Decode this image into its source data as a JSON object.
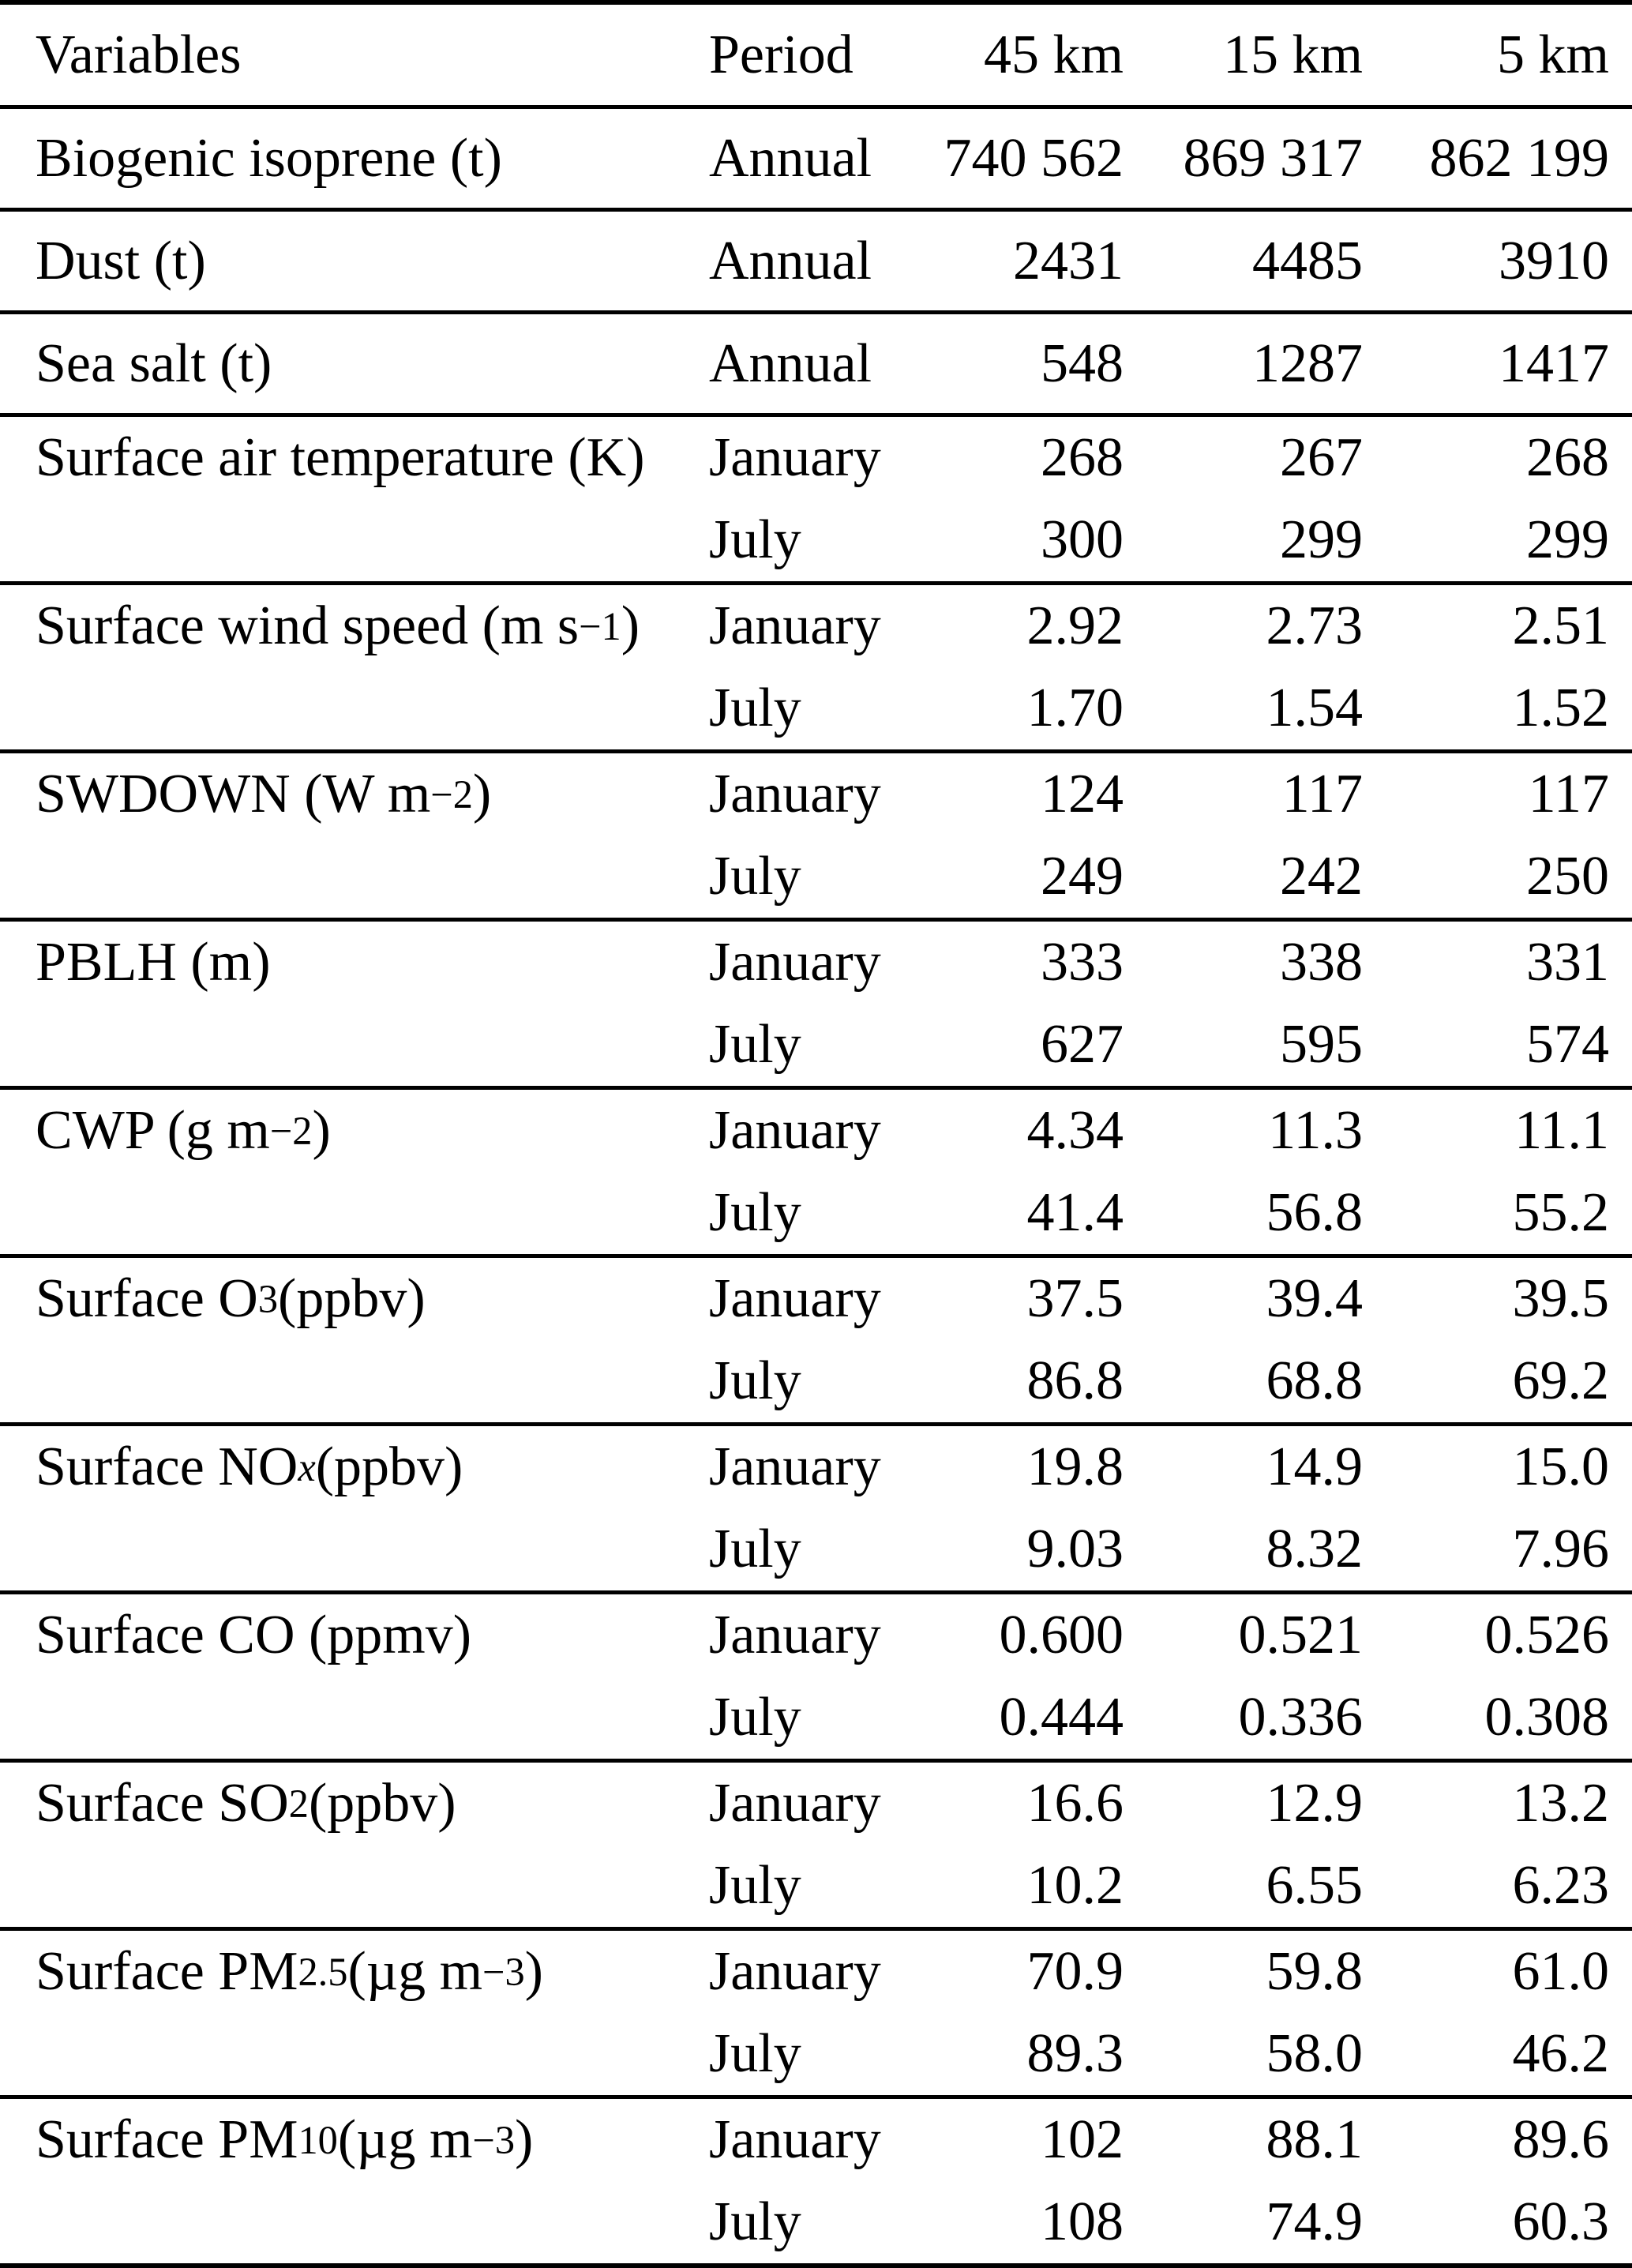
{
  "table": {
    "columns": [
      "Variables",
      "Period",
      "45 km",
      "15 km",
      "5 km"
    ],
    "rows": [
      {
        "variable": [
          {
            "t": "Biogenic isoprene (t)"
          }
        ],
        "entries": [
          {
            "period": "Annual",
            "values": [
              "740 562",
              "869 317",
              "862 199"
            ]
          }
        ]
      },
      {
        "variable": [
          {
            "t": "Dust (t)"
          }
        ],
        "entries": [
          {
            "period": "Annual",
            "values": [
              "2431",
              "4485",
              "3910"
            ]
          }
        ]
      },
      {
        "variable": [
          {
            "t": "Sea salt (t)"
          }
        ],
        "entries": [
          {
            "period": "Annual",
            "values": [
              "548",
              "1287",
              "1417"
            ]
          }
        ]
      },
      {
        "variable": [
          {
            "t": "Surface air temperature (K)"
          }
        ],
        "entries": [
          {
            "period": "January",
            "values": [
              "268",
              "267",
              "268"
            ]
          },
          {
            "period": "July",
            "values": [
              "300",
              "299",
              "299"
            ]
          }
        ]
      },
      {
        "variable": [
          {
            "t": "Surface wind speed (m s"
          },
          {
            "t": "−1",
            "sup": true
          },
          {
            "t": ")"
          }
        ],
        "entries": [
          {
            "period": "January",
            "values": [
              "2.92",
              "2.73",
              "2.51"
            ]
          },
          {
            "period": "July",
            "values": [
              "1.70",
              "1.54",
              "1.52"
            ]
          }
        ]
      },
      {
        "variable": [
          {
            "t": "SWDOWN (W m"
          },
          {
            "t": "−2",
            "sup": true
          },
          {
            "t": ")"
          }
        ],
        "entries": [
          {
            "period": "January",
            "values": [
              "124",
              "117",
              "117"
            ]
          },
          {
            "period": "July",
            "values": [
              "249",
              "242",
              "250"
            ]
          }
        ]
      },
      {
        "variable": [
          {
            "t": "PBLH (m)"
          }
        ],
        "entries": [
          {
            "period": "January",
            "values": [
              "333",
              "338",
              "331"
            ]
          },
          {
            "period": "July",
            "values": [
              "627",
              "595",
              "574"
            ]
          }
        ]
      },
      {
        "variable": [
          {
            "t": "CWP (g m"
          },
          {
            "t": "−2",
            "sup": true
          },
          {
            "t": ")"
          }
        ],
        "entries": [
          {
            "period": "January",
            "values": [
              "4.34",
              "11.3",
              "11.1"
            ]
          },
          {
            "period": "July",
            "values": [
              "41.4",
              "56.8",
              "55.2"
            ]
          }
        ]
      },
      {
        "variable": [
          {
            "t": "Surface O"
          },
          {
            "t": "3",
            "sub": true
          },
          {
            "t": " (ppbv)"
          }
        ],
        "entries": [
          {
            "period": "January",
            "values": [
              "37.5",
              "39.4",
              "39.5"
            ]
          },
          {
            "period": "July",
            "values": [
              "86.8",
              "68.8",
              "69.2"
            ]
          }
        ]
      },
      {
        "variable": [
          {
            "t": "Surface NO"
          },
          {
            "t": "x",
            "sub": true,
            "italic": true
          },
          {
            "t": " (ppbv)"
          }
        ],
        "entries": [
          {
            "period": "January",
            "values": [
              "19.8",
              "14.9",
              "15.0"
            ]
          },
          {
            "period": "July",
            "values": [
              "9.03",
              "8.32",
              "7.96"
            ]
          }
        ]
      },
      {
        "variable": [
          {
            "t": "Surface CO (ppmv)"
          }
        ],
        "entries": [
          {
            "period": "January",
            "values": [
              "0.600",
              "0.521",
              "0.526"
            ]
          },
          {
            "period": "July",
            "values": [
              "0.444",
              "0.336",
              "0.308"
            ]
          }
        ]
      },
      {
        "variable": [
          {
            "t": "Surface SO"
          },
          {
            "t": "2",
            "sub": true
          },
          {
            "t": " (ppbv)"
          }
        ],
        "entries": [
          {
            "period": "January",
            "values": [
              "16.6",
              "12.9",
              "13.2"
            ]
          },
          {
            "period": "July",
            "values": [
              "10.2",
              "6.55",
              "6.23"
            ]
          }
        ]
      },
      {
        "variable": [
          {
            "t": "Surface PM"
          },
          {
            "t": "2.5",
            "sub": true
          },
          {
            "t": " (µg m"
          },
          {
            "t": "−3",
            "sup": true
          },
          {
            "t": ")"
          }
        ],
        "entries": [
          {
            "period": "January",
            "values": [
              "70.9",
              "59.8",
              "61.0"
            ]
          },
          {
            "period": "July",
            "values": [
              "89.3",
              "58.0",
              "46.2"
            ]
          }
        ]
      },
      {
        "variable": [
          {
            "t": "Surface PM"
          },
          {
            "t": "10",
            "sub": true
          },
          {
            "t": " (µg m"
          },
          {
            "t": "−3",
            "sup": true
          },
          {
            "t": ")"
          }
        ],
        "entries": [
          {
            "period": "January",
            "values": [
              "102",
              "88.1",
              "89.6"
            ]
          },
          {
            "period": "July",
            "values": [
              "108",
              "74.9",
              "60.3"
            ]
          }
        ]
      }
    ]
  }
}
